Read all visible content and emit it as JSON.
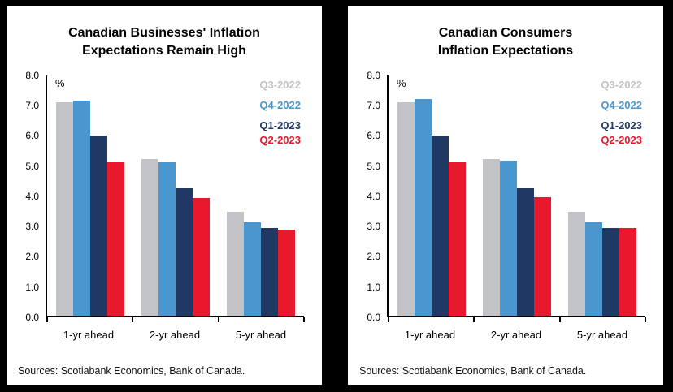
{
  "chart_data": [
    {
      "type": "bar",
      "title_lines": [
        "Canadian Businesses' Inflation",
        "Expectations Remain High"
      ],
      "categories": [
        "1-yr ahead",
        "2-yr ahead",
        "5-yr ahead"
      ],
      "series": [
        {
          "name": "Q3-2022",
          "color": "#c2c3c7",
          "values": [
            7.1,
            5.2,
            3.45
          ]
        },
        {
          "name": "Q4-2022",
          "color": "#4a97cf",
          "values": [
            7.15,
            5.1,
            3.1
          ]
        },
        {
          "name": "Q1-2023",
          "color": "#1f3864",
          "values": [
            6.0,
            4.25,
            2.9
          ]
        },
        {
          "name": "Q2-2023",
          "color": "#e8192c",
          "values": [
            5.1,
            3.9,
            2.85
          ]
        }
      ],
      "xlabel": "",
      "ylabel": "%",
      "ylim": [
        0,
        8
      ],
      "ytick": 1,
      "grid": false,
      "legend_position": "top-right",
      "source": "Sources: Scotiabank Economics, Bank of Canada."
    },
    {
      "type": "bar",
      "title_lines": [
        "Canadian Consumers",
        "Inflation Expectations"
      ],
      "categories": [
        "1-yr ahead",
        "2-yr ahead",
        "5-yr ahead"
      ],
      "series": [
        {
          "name": "Q3-2022",
          "color": "#c2c3c7",
          "values": [
            7.1,
            5.2,
            3.45
          ]
        },
        {
          "name": "Q4-2022",
          "color": "#4a97cf",
          "values": [
            7.2,
            5.15,
            3.1
          ]
        },
        {
          "name": "Q1-2023",
          "color": "#1f3864",
          "values": [
            6.0,
            4.25,
            2.9
          ]
        },
        {
          "name": "Q2-2023",
          "color": "#e8192c",
          "values": [
            5.1,
            3.95,
            2.9
          ]
        }
      ],
      "xlabel": "",
      "ylabel": "%",
      "ylim": [
        0,
        8
      ],
      "ytick": 1,
      "grid": false,
      "legend_position": "top-right",
      "source": "Sources: Scotiabank Economics, Bank of Canada."
    }
  ]
}
